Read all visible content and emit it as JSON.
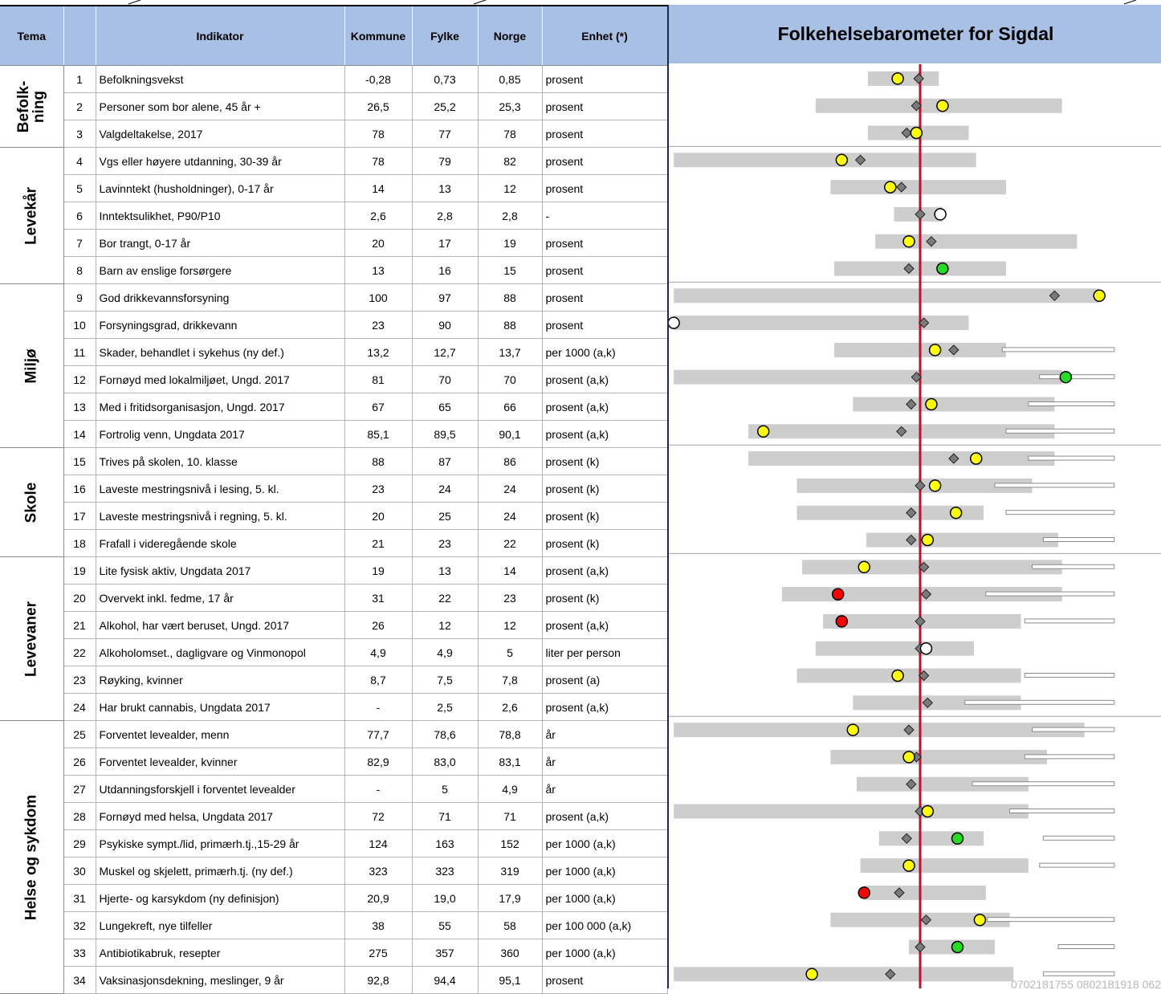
{
  "header": {
    "tema": "Tema",
    "indikator": "Indikator",
    "kommune": "Kommune",
    "fylke": "Fylke",
    "norge": "Norge",
    "enhet": "Enhet (*)"
  },
  "groups": [
    {
      "label": "Befolk-\nning",
      "rows": 3
    },
    {
      "label": "Levekår",
      "rows": 5
    },
    {
      "label": "Miljø",
      "rows": 6
    },
    {
      "label": "Skole",
      "rows": 4
    },
    {
      "label": "Levevaner",
      "rows": 6
    },
    {
      "label": "Helse og sykdom",
      "rows": 10
    }
  ],
  "rows": [
    {
      "nr": "1",
      "indikator": "Befolkningsvekst",
      "kommune": "-0,28",
      "fylke": "0,73",
      "norge": "0,85",
      "enhet": "prosent"
    },
    {
      "nr": "2",
      "indikator": "Personer som bor alene, 45 år +",
      "kommune": "26,5",
      "fylke": "25,2",
      "norge": "25,3",
      "enhet": "prosent"
    },
    {
      "nr": "3",
      "indikator": "Valgdeltakelse, 2017",
      "kommune": "78",
      "fylke": "77",
      "norge": "78",
      "enhet": "prosent"
    },
    {
      "nr": "4",
      "indikator": "Vgs eller høyere utdanning, 30-39 år",
      "kommune": "78",
      "fylke": "79",
      "norge": "82",
      "enhet": "prosent"
    },
    {
      "nr": "5",
      "indikator": "Lavinntekt (husholdninger), 0-17 år",
      "kommune": "14",
      "fylke": "13",
      "norge": "12",
      "enhet": "prosent"
    },
    {
      "nr": "6",
      "indikator": "Inntektsulikhet, P90/P10",
      "kommune": "2,6",
      "fylke": "2,8",
      "norge": "2,8",
      "enhet": "-"
    },
    {
      "nr": "7",
      "indikator": "Bor trangt, 0-17 år",
      "kommune": "20",
      "fylke": "17",
      "norge": "19",
      "enhet": "prosent"
    },
    {
      "nr": "8",
      "indikator": "Barn av enslige forsørgere",
      "kommune": "13",
      "fylke": "16",
      "norge": "15",
      "enhet": "prosent"
    },
    {
      "nr": "9",
      "indikator": "God drikkevannsforsyning",
      "kommune": "100",
      "fylke": "97",
      "norge": "88",
      "enhet": "prosent"
    },
    {
      "nr": "10",
      "indikator": "Forsyningsgrad, drikkevann",
      "kommune": "23",
      "fylke": "90",
      "norge": "88",
      "enhet": "prosent"
    },
    {
      "nr": "11",
      "indikator": "Skader, behandlet i sykehus (ny def.)",
      "kommune": "13,2",
      "fylke": "12,7",
      "norge": "13,7",
      "enhet": "per 1000 (a,k)"
    },
    {
      "nr": "12",
      "indikator": "Fornøyd med lokalmiljøet, Ungd. 2017",
      "kommune": "81",
      "fylke": "70",
      "norge": "70",
      "enhet": "prosent (a,k)"
    },
    {
      "nr": "13",
      "indikator": "Med i fritidsorganisasjon, Ungd. 2017",
      "kommune": "67",
      "fylke": "65",
      "norge": "66",
      "enhet": "prosent (a,k)"
    },
    {
      "nr": "14",
      "indikator": "Fortrolig venn, Ungdata 2017",
      "kommune": "85,1",
      "fylke": "89,5",
      "norge": "90,1",
      "enhet": "prosent (a,k)"
    },
    {
      "nr": "15",
      "indikator": "Trives på skolen, 10. klasse",
      "kommune": "88",
      "fylke": "87",
      "norge": "86",
      "enhet": "prosent (k)"
    },
    {
      "nr": "16",
      "indikator": "Laveste mestringsnivå i lesing, 5. kl.",
      "kommune": "23",
      "fylke": "24",
      "norge": "24",
      "enhet": "prosent (k)"
    },
    {
      "nr": "17",
      "indikator": "Laveste mestringsnivå i regning, 5. kl.",
      "kommune": "20",
      "fylke": "25",
      "norge": "24",
      "enhet": "prosent (k)"
    },
    {
      "nr": "18",
      "indikator": "Frafall i videregående skole",
      "kommune": "21",
      "fylke": "23",
      "norge": "22",
      "enhet": "prosent (k)"
    },
    {
      "nr": "19",
      "indikator": "Lite fysisk aktiv, Ungdata 2017",
      "kommune": "19",
      "fylke": "13",
      "norge": "14",
      "enhet": "prosent (a,k)"
    },
    {
      "nr": "20",
      "indikator": "Overvekt inkl. fedme, 17 år",
      "kommune": "31",
      "fylke": "22",
      "norge": "23",
      "enhet": "prosent (k)"
    },
    {
      "nr": "21",
      "indikator": "Alkohol, har vært beruset, Ungd. 2017",
      "kommune": "26",
      "fylke": "12",
      "norge": "12",
      "enhet": "prosent (a,k)"
    },
    {
      "nr": "22",
      "indikator": "Alkoholomset., dagligvare og Vinmonopol",
      "kommune": "4,9",
      "fylke": "4,9",
      "norge": "5",
      "enhet": "liter per person"
    },
    {
      "nr": "23",
      "indikator": "Røyking, kvinner",
      "kommune": "8,7",
      "fylke": "7,5",
      "norge": "7,8",
      "enhet": "prosent (a)"
    },
    {
      "nr": "24",
      "indikator": "Har brukt cannabis, Ungdata 2017",
      "kommune": "-",
      "fylke": "2,5",
      "norge": "2,6",
      "enhet": "prosent (a,k)"
    },
    {
      "nr": "25",
      "indikator": "Forventet levealder, menn",
      "kommune": "77,7",
      "fylke": "78,6",
      "norge": "78,8",
      "enhet": "år"
    },
    {
      "nr": "26",
      "indikator": "Forventet levealder, kvinner",
      "kommune": "82,9",
      "fylke": "83,0",
      "norge": "83,1",
      "enhet": "år"
    },
    {
      "nr": "27",
      "indikator": "Utdanningsforskjell i forventet levealder",
      "kommune": "-",
      "fylke": "5",
      "norge": "4,9",
      "enhet": "år"
    },
    {
      "nr": "28",
      "indikator": "Fornøyd med helsa, Ungdata 2017",
      "kommune": "72",
      "fylke": "71",
      "norge": "71",
      "enhet": "prosent (a,k)"
    },
    {
      "nr": "29",
      "indikator": "Psykiske sympt./lid, primærh.tj.,15-29 år",
      "kommune": "124",
      "fylke": "163",
      "norge": "152",
      "enhet": "per 1000 (a,k)"
    },
    {
      "nr": "30",
      "indikator": "Muskel og skjelett, primærh.tj. (ny def.)",
      "kommune": "323",
      "fylke": "323",
      "norge": "319",
      "enhet": "per 1000 (a,k)"
    },
    {
      "nr": "31",
      "indikator": "Hjerte- og karsykdom (ny definisjon)",
      "kommune": "20,9",
      "fylke": "19,0",
      "norge": "17,9",
      "enhet": "per 1000 (a,k)"
    },
    {
      "nr": "32",
      "indikator": "Lungekreft, nye tilfeller",
      "kommune": "38",
      "fylke": "55",
      "norge": "58",
      "enhet": "per 100 000 (a,k)"
    },
    {
      "nr": "33",
      "indikator": "Antibiotikabruk, resepter",
      "kommune": "275",
      "fylke": "357",
      "norge": "360",
      "enhet": "per 1000 (a,k)"
    },
    {
      "nr": "34",
      "indikator": "Vaksinasjonsdekning, meslinger, 9 år",
      "kommune": "92,8",
      "fylke": "94,4",
      "norge": "95,1",
      "enhet": "prosent"
    }
  ],
  "chart_title": "Folkehelsebarometer for Sigdal",
  "stamp": "0702181755 0802181918 062",
  "colors": {
    "header_bg": "#a8c0e4",
    "bar": "#cdcdcd",
    "norway_line": "#c0102a",
    "diamond": "#7a7a7a",
    "yellow": "#ffff00",
    "green": "#22dd22",
    "red": "#ff0000",
    "white": "#ffffff"
  },
  "chart_data": {
    "type": "barometer",
    "title": "Folkehelsebarometer for Sigdal",
    "x_description": "relative position, Norway = 0",
    "xlim": [
      -3.3,
      1.6
    ],
    "rows": [
      {
        "min": -0.7,
        "max": 0.25,
        "fylke": -0.02,
        "kommune": -0.3,
        "status": "yellow"
      },
      {
        "min": -1.4,
        "max": 1.9,
        "fylke": -0.05,
        "kommune": 0.3,
        "status": "yellow"
      },
      {
        "min": -0.7,
        "max": 0.65,
        "fylke": -0.18,
        "kommune": -0.05,
        "status": "yellow"
      },
      {
        "min": -3.3,
        "max": 0.75,
        "fylke": -0.8,
        "kommune": -1.05,
        "status": "yellow"
      },
      {
        "min": -1.2,
        "max": 1.15,
        "fylke": -0.25,
        "kommune": -0.4,
        "status": "yellow"
      },
      {
        "min": -0.35,
        "max": 0.3,
        "fylke": 0.0,
        "kommune": 0.27,
        "status": "white"
      },
      {
        "min": -0.6,
        "max": 2.1,
        "fylke": 0.15,
        "kommune": -0.15,
        "status": "yellow"
      },
      {
        "min": -1.15,
        "max": 1.15,
        "fylke": -0.15,
        "kommune": 0.3,
        "status": "green"
      },
      {
        "min": -3.3,
        "max": 2.4,
        "fylke": 1.8,
        "kommune": 2.4,
        "status": "yellow"
      },
      {
        "min": -3.3,
        "max": 0.65,
        "fylke": 0.05,
        "kommune": -3.3,
        "status": "white"
      },
      {
        "min": -1.15,
        "max": 1.15,
        "fylke": 0.45,
        "kommune": 0.2,
        "status": "yellow",
        "ext": [
          1.1,
          2.6
        ]
      },
      {
        "min": -3.3,
        "max": 1.9,
        "fylke": -0.05,
        "kommune": 1.95,
        "status": "green",
        "ext": [
          1.6,
          2.6
        ]
      },
      {
        "min": -0.9,
        "max": 1.8,
        "fylke": -0.12,
        "kommune": 0.15,
        "status": "yellow",
        "ext": [
          1.45,
          2.6
        ]
      },
      {
        "min": -2.3,
        "max": 1.8,
        "fylke": -0.25,
        "kommune": -2.1,
        "status": "yellow",
        "ext": [
          1.15,
          2.6
        ]
      },
      {
        "min": -2.3,
        "max": 1.8,
        "fylke": 0.45,
        "kommune": 0.75,
        "status": "yellow",
        "ext": [
          1.45,
          2.6
        ]
      },
      {
        "min": -1.65,
        "max": 1.5,
        "fylke": 0.0,
        "kommune": 0.2,
        "status": "yellow",
        "ext": [
          1.0,
          2.6
        ]
      },
      {
        "min": -1.65,
        "max": 0.85,
        "fylke": -0.12,
        "kommune": 0.48,
        "status": "yellow",
        "ext": [
          1.15,
          2.6
        ]
      },
      {
        "min": -0.72,
        "max": 1.85,
        "fylke": -0.12,
        "kommune": 0.1,
        "status": "yellow",
        "ext": [
          1.65,
          2.6
        ]
      },
      {
        "min": -1.58,
        "max": 1.9,
        "fylke": 0.05,
        "kommune": -0.75,
        "status": "yellow",
        "ext": [
          1.5,
          2.6
        ]
      },
      {
        "min": -1.85,
        "max": 1.9,
        "fylke": 0.08,
        "kommune": -1.1,
        "status": "red",
        "ext": [
          0.88,
          2.6
        ]
      },
      {
        "min": -1.3,
        "max": 1.35,
        "fylke": 0.0,
        "kommune": -1.05,
        "status": "red",
        "ext": [
          1.4,
          2.6
        ]
      },
      {
        "min": -1.4,
        "max": 0.72,
        "fylke": 0.0,
        "kommune": 0.08,
        "status": "white"
      },
      {
        "min": -1.65,
        "max": 1.35,
        "fylke": 0.05,
        "kommune": -0.3,
        "status": "yellow",
        "ext": [
          1.4,
          2.6
        ]
      },
      {
        "min": -0.9,
        "max": 1.35,
        "fylke": 0.1,
        "kommune": null,
        "status": "none",
        "ext": [
          0.6,
          2.6
        ]
      },
      {
        "min": -3.3,
        "max": 2.2,
        "fylke": -0.15,
        "kommune": -0.9,
        "status": "yellow",
        "ext": [
          1.5,
          2.6
        ]
      },
      {
        "min": -1.2,
        "max": 1.7,
        "fylke": -0.05,
        "kommune": -0.15,
        "status": "yellow",
        "ext": [
          1.4,
          2.6
        ]
      },
      {
        "min": -0.85,
        "max": 1.45,
        "fylke": -0.12,
        "kommune": null,
        "status": "none",
        "ext": [
          0.7,
          2.6
        ]
      },
      {
        "min": -3.3,
        "max": 1.45,
        "fylke": 0.0,
        "kommune": 0.1,
        "status": "yellow",
        "ext": [
          1.2,
          2.6
        ]
      },
      {
        "min": -0.55,
        "max": 0.85,
        "fylke": -0.18,
        "kommune": 0.5,
        "status": "green",
        "ext": [
          1.65,
          2.6
        ]
      },
      {
        "min": -0.8,
        "max": 1.45,
        "fylke": -0.15,
        "kommune": -0.15,
        "status": "yellow",
        "ext": [
          1.6,
          2.6
        ]
      },
      {
        "min": -0.75,
        "max": 0.88,
        "fylke": -0.28,
        "kommune": -0.75,
        "status": "red"
      },
      {
        "min": -1.2,
        "max": 1.2,
        "fylke": 0.08,
        "kommune": 0.8,
        "status": "yellow",
        "ext": [
          0.9,
          2.6
        ]
      },
      {
        "min": -0.15,
        "max": 1.0,
        "fylke": 0.0,
        "kommune": 0.5,
        "status": "green",
        "ext": [
          1.85,
          2.6
        ]
      },
      {
        "min": -3.3,
        "max": 1.25,
        "fylke": -0.4,
        "kommune": -1.45,
        "status": "yellow",
        "ext": [
          1.65,
          2.6
        ]
      }
    ]
  }
}
